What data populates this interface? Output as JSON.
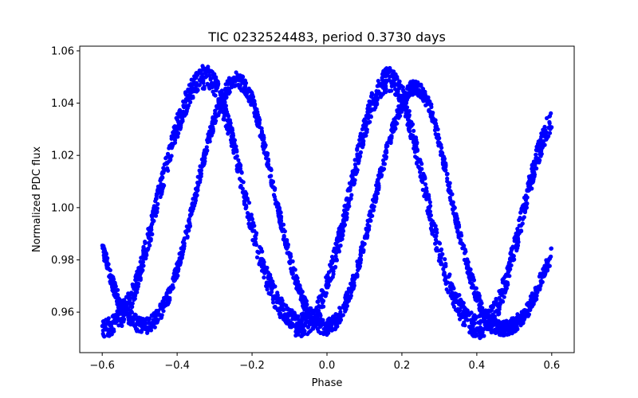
{
  "chart_data": {
    "type": "scatter",
    "title": "TIC 0232524483, period 0.3730 days",
    "xlabel": "Phase",
    "ylabel": "Normalized PDC flux",
    "xlim": [
      -0.66,
      0.66
    ],
    "ylim": [
      0.9445,
      1.0618
    ],
    "grid": false,
    "series_color": "#0000ff",
    "xticks": [
      -0.6,
      -0.4,
      -0.2,
      0.0,
      0.2,
      0.4,
      0.6
    ],
    "xtick_labels": [
      "−0.6",
      "−0.4",
      "−0.2",
      "0.0",
      "0.2",
      "0.4",
      "0.6"
    ],
    "yticks": [
      0.96,
      0.98,
      1.0,
      1.02,
      1.04,
      1.06
    ],
    "ytick_labels": [
      "0.96",
      "0.98",
      "1.00",
      "1.02",
      "1.04",
      "1.06"
    ],
    "band_a": {
      "x": [
        -0.6,
        -0.57,
        -0.55,
        -0.52,
        -0.5,
        -0.48,
        -0.46,
        -0.44,
        -0.42,
        -0.4,
        -0.38,
        -0.36,
        -0.34,
        -0.33,
        -0.32,
        -0.31,
        -0.3,
        -0.28,
        -0.26,
        -0.24,
        -0.22,
        -0.2,
        -0.18,
        -0.16,
        -0.14,
        -0.12,
        -0.1,
        -0.08,
        -0.06,
        -0.04,
        -0.02,
        0.0,
        0.02,
        0.04,
        0.06,
        0.08,
        0.1,
        0.12,
        0.14,
        0.15,
        0.16,
        0.17,
        0.18,
        0.2,
        0.22,
        0.24,
        0.26,
        0.28,
        0.3,
        0.32,
        0.34,
        0.36,
        0.38,
        0.4,
        0.42,
        0.44,
        0.46,
        0.48,
        0.5,
        0.52,
        0.54,
        0.56,
        0.58,
        0.6
      ],
      "y": [
        0.955,
        0.955,
        0.958,
        0.966,
        0.975,
        0.986,
        0.998,
        1.01,
        1.021,
        1.031,
        1.039,
        1.045,
        1.049,
        1.05,
        1.05,
        1.049,
        1.047,
        1.04,
        1.03,
        1.018,
        1.005,
        0.993,
        0.982,
        0.973,
        0.966,
        0.961,
        0.957,
        0.955,
        0.955,
        0.957,
        0.962,
        0.97,
        0.98,
        0.992,
        1.005,
        1.018,
        1.03,
        1.04,
        1.046,
        1.048,
        1.049,
        1.049,
        1.048,
        1.043,
        1.033,
        1.021,
        1.008,
        0.995,
        0.983,
        0.973,
        0.966,
        0.96,
        0.956,
        0.954,
        0.955,
        0.958,
        0.964,
        0.973,
        0.984,
        0.996,
        1.008,
        1.019,
        1.028,
        1.034
      ],
      "spread": 0.0045
    },
    "band_b": {
      "x": [
        -0.6,
        -0.57,
        -0.55,
        -0.52,
        -0.5,
        -0.48,
        -0.46,
        -0.44,
        -0.42,
        -0.4,
        -0.38,
        -0.36,
        -0.34,
        -0.32,
        -0.3,
        -0.28,
        -0.26,
        -0.24,
        -0.22,
        -0.2,
        -0.18,
        -0.16,
        -0.14,
        -0.12,
        -0.1,
        -0.08,
        -0.06,
        -0.04,
        -0.02,
        0.0,
        0.02,
        0.04,
        0.06,
        0.08,
        0.1,
        0.12,
        0.14,
        0.16,
        0.18,
        0.2,
        0.22,
        0.24,
        0.26,
        0.28,
        0.3,
        0.32,
        0.34,
        0.36,
        0.38,
        0.4,
        0.42,
        0.44,
        0.46,
        0.48,
        0.5,
        0.52,
        0.54,
        0.56,
        0.58,
        0.6
      ],
      "y": [
        0.985,
        0.97,
        0.962,
        0.957,
        0.955,
        0.955,
        0.957,
        0.961,
        0.967,
        0.976,
        0.987,
        0.999,
        1.012,
        1.024,
        1.034,
        1.042,
        1.047,
        1.049,
        1.047,
        1.041,
        1.031,
        1.019,
        1.006,
        0.993,
        0.981,
        0.971,
        0.963,
        0.958,
        0.955,
        0.954,
        0.956,
        0.96,
        0.967,
        0.976,
        0.987,
        0.999,
        1.011,
        1.022,
        1.032,
        1.04,
        1.045,
        1.046,
        1.043,
        1.036,
        1.025,
        1.012,
        0.999,
        0.986,
        0.975,
        0.966,
        0.959,
        0.955,
        0.954,
        0.954,
        0.955,
        0.958,
        0.962,
        0.968,
        0.976,
        0.982
      ],
      "spread": 0.003
    }
  }
}
